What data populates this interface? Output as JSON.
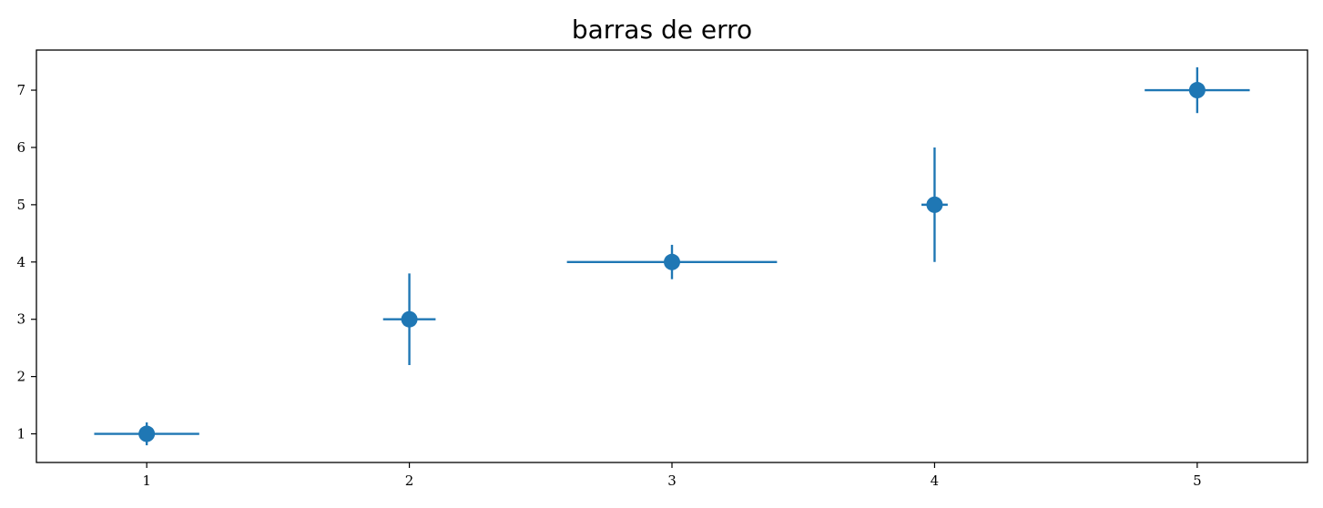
{
  "chart_data": {
    "type": "scatter",
    "title": "barras de erro",
    "xlabel": "",
    "ylabel": "",
    "xlim": [
      0.58,
      5.42
    ],
    "ylim": [
      0.5,
      7.7
    ],
    "xticks": [
      1,
      2,
      3,
      4,
      5
    ],
    "yticks": [
      1,
      2,
      3,
      4,
      5,
      6,
      7
    ],
    "grid": false,
    "color": "#1f77b4",
    "points": [
      {
        "x": 1,
        "y": 1,
        "xerr": 0.2,
        "yerr": 0.2
      },
      {
        "x": 2,
        "y": 3,
        "xerr": 0.1,
        "yerr": 0.8
      },
      {
        "x": 3,
        "y": 4,
        "xerr": 0.4,
        "yerr": 0.3
      },
      {
        "x": 4,
        "y": 5,
        "xerr": 0.05,
        "yerr": 1.0
      },
      {
        "x": 5,
        "y": 7,
        "xerr": 0.2,
        "yerr": 0.4
      }
    ]
  }
}
